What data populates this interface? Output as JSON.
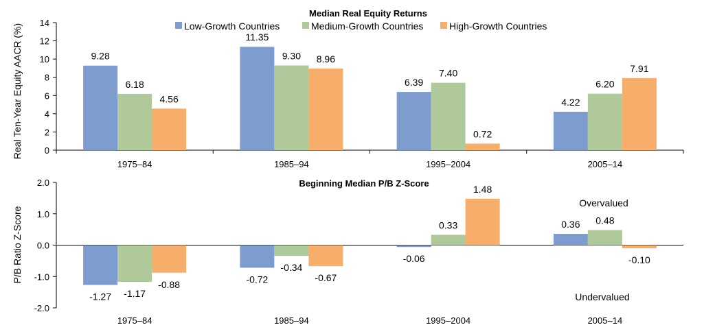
{
  "colors": {
    "low": "#7f9cce",
    "medium": "#b0c99a",
    "high": "#f8ae6b"
  },
  "chart_data": [
    {
      "type": "bar",
      "title": "Median Real Equity Returns",
      "ylabel": "Real Ten-Year Equity AACR (%)",
      "xlabel": "",
      "ylim": [
        0,
        14
      ],
      "yticks": [
        "0",
        "2",
        "4",
        "6",
        "8",
        "10",
        "12",
        "14"
      ],
      "categories": [
        "1975–84",
        "1985–94",
        "1995–2004",
        "2005–14"
      ],
      "legend_position": "top",
      "series": [
        {
          "name": "Low-Growth Countries",
          "color_key": "low",
          "values": [
            9.28,
            11.35,
            6.39,
            4.22
          ],
          "labels": [
            "9.28",
            "11.35",
            "6.39",
            "4.22"
          ]
        },
        {
          "name": "Medium-Growth Countries",
          "color_key": "medium",
          "values": [
            6.18,
            9.3,
            7.4,
            6.2
          ],
          "labels": [
            "6.18",
            "9.30",
            "7.40",
            "6.20"
          ]
        },
        {
          "name": "High-Growth Countries",
          "color_key": "high",
          "values": [
            4.56,
            8.96,
            0.72,
            7.91
          ],
          "labels": [
            "4.56",
            "8.96",
            "0.72",
            "7.91"
          ]
        }
      ]
    },
    {
      "type": "bar",
      "title": "Beginning Median P/B Z-Score",
      "ylabel": "P/B Ratio Z-Score",
      "xlabel": "",
      "ylim": [
        -2.0,
        2.0
      ],
      "yticks": [
        "-2.0",
        "-1.0",
        "0.0",
        "1.0",
        "2.0"
      ],
      "categories": [
        "1975–84",
        "1985–94",
        "1995–2004",
        "2005–14"
      ],
      "annotations": {
        "top": "Overvalued",
        "bottom": "Undervalued"
      },
      "series": [
        {
          "color_key": "low",
          "values": [
            -1.27,
            -0.72,
            -0.06,
            0.36
          ],
          "labels": [
            "-1.27",
            "-0.72",
            "-0.06",
            "0.36"
          ]
        },
        {
          "color_key": "medium",
          "values": [
            -1.17,
            -0.34,
            0.33,
            0.48
          ],
          "labels": [
            "-1.17",
            "-0.34",
            "0.33",
            "0.48"
          ]
        },
        {
          "color_key": "high",
          "values": [
            -0.88,
            -0.67,
            1.48,
            -0.1
          ],
          "labels": [
            "-0.88",
            "-0.67",
            "1.48",
            "-0.10"
          ]
        }
      ]
    }
  ]
}
